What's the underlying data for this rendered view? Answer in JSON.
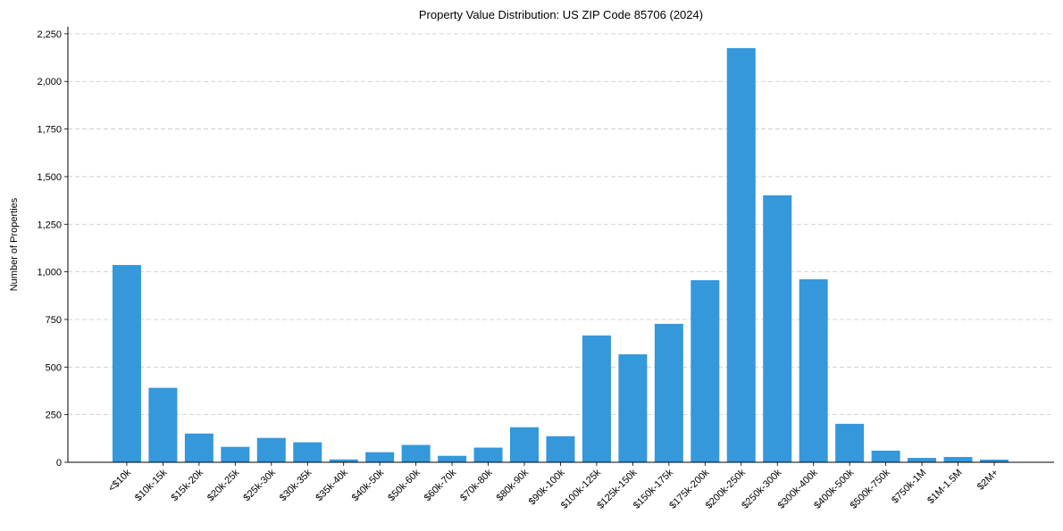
{
  "chart_data": {
    "type": "bar",
    "title": "Property Value Distribution: US ZIP Code 85706 (2024)",
    "xlabel": "",
    "ylabel": "Number of Properties",
    "categories": [
      "<$10k",
      "$10k-15k",
      "$15k-20k",
      "$20k-25k",
      "$25k-30k",
      "$30k-35k",
      "$35k-40k",
      "$40k-50k",
      "$50k-60k",
      "$60k-70k",
      "$70k-80k",
      "$80k-90k",
      "$90k-100k",
      "$100k-125k",
      "$125k-150k",
      "$150k-175k",
      "$175k-200k",
      "$200k-250k",
      "$250k-300k",
      "$300k-400k",
      "$400k-500k",
      "$500k-750k",
      "$750k-1M",
      "$1M-1.5M",
      "$2M+"
    ],
    "values": [
      1036,
      391,
      151,
      81,
      128,
      105,
      15,
      53,
      91,
      34,
      77,
      184,
      137,
      666,
      567,
      727,
      956,
      2175,
      1402,
      961,
      202,
      61,
      23,
      28,
      14
    ],
    "ylim": [
      0,
      2287
    ],
    "yticks": [
      0,
      250,
      500,
      750,
      1000,
      1250,
      1500,
      1750,
      2000,
      2250
    ],
    "ytick_labels": [
      "0",
      "250",
      "500",
      "750",
      "1,000",
      "1,250",
      "1,500",
      "1,750",
      "2,000",
      "2,250"
    ],
    "grid": "y dashed",
    "bar_color": "#3498db"
  }
}
